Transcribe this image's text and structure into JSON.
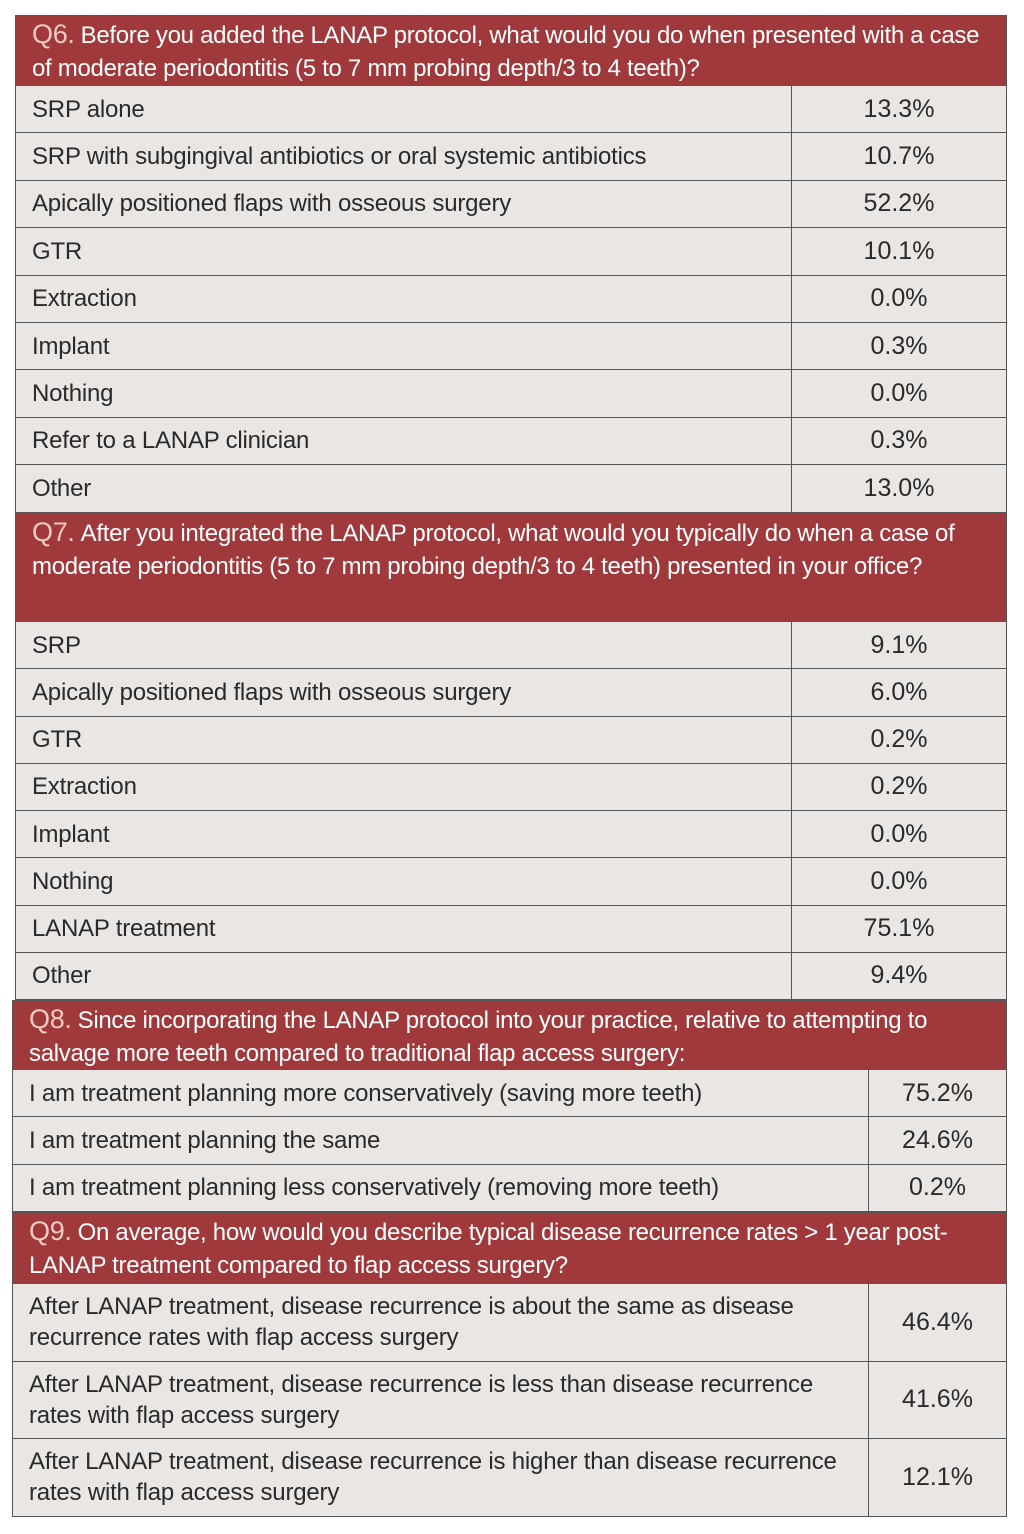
{
  "sections": [
    {
      "label": "Q6.",
      "question": "Before you added the LANAP protocol, what would you do when presented with a case of moderate periodontitis (5 to 7 mm probing depth/3 to 4 teeth)?",
      "rows": [
        [
          "SRP alone",
          "13.3%"
        ],
        [
          "SRP with subgingival antibiotics or oral systemic antibiotics",
          "10.7%"
        ],
        [
          "Apically positioned flaps with osseous surgery",
          "52.2%"
        ],
        [
          "GTR",
          "10.1%"
        ],
        [
          "Extraction",
          "0.0%"
        ],
        [
          "Implant",
          "0.3%"
        ],
        [
          "Nothing",
          "0.0%"
        ],
        [
          "Refer to a LANAP clinician",
          "0.3%"
        ],
        [
          "Other",
          "13.0%"
        ]
      ]
    },
    {
      "label": "Q7.",
      "question": "After you integrated the LANAP protocol, what would you typically do when a case of moderate periodontitis (5 to 7 mm probing depth/3 to 4 teeth) presented in your office?",
      "rows": [
        [
          "SRP",
          "9.1%"
        ],
        [
          "Apically positioned flaps with osseous surgery",
          "6.0%"
        ],
        [
          "GTR",
          "0.2%"
        ],
        [
          "Extraction",
          "0.2%"
        ],
        [
          "Implant",
          "0.0%"
        ],
        [
          "Nothing",
          "0.0%"
        ],
        [
          "LANAP treatment",
          "75.1%"
        ],
        [
          "Other",
          "9.4%"
        ]
      ]
    },
    {
      "label": "Q8.",
      "question": "Since incorporating the LANAP protocol into your practice, relative to attempting to salvage more teeth compared to traditional flap access surgery:",
      "rows": [
        [
          "I am treatment planning more conservatively (saving more teeth)",
          "75.2%"
        ],
        [
          "I am treatment planning the same",
          "24.6%"
        ],
        [
          "I am treatment planning less conservatively (removing more teeth)",
          "0.2%"
        ]
      ]
    },
    {
      "label": "Q9.",
      "question": "On average, how would you describe typical disease recurrence rates > 1 year post-LANAP treatment compared to flap access surgery?",
      "rows": [
        [
          "After LANAP treatment, disease recurrence is about the same as disease recurrence rates with flap access surgery",
          "46.4%"
        ],
        [
          "After LANAP treatment, disease recurrence is less than disease recurrence rates with flap access surgery",
          "41.6%"
        ],
        [
          "After LANAP treatment, disease recurrence is higher than disease recurrence rates with flap access surgery",
          "12.1%"
        ]
      ]
    }
  ]
}
